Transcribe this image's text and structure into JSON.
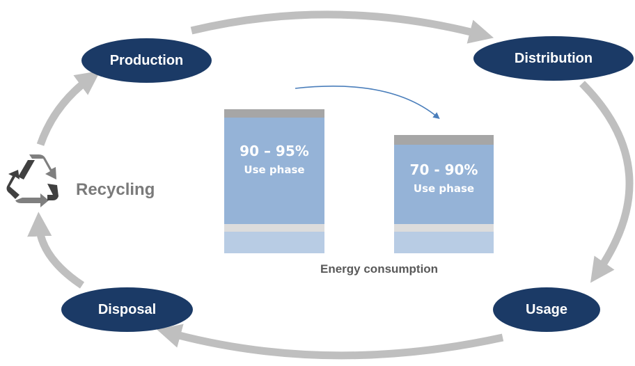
{
  "cycle": {
    "production": "Production",
    "distribution": "Distribution",
    "usage": "Usage",
    "disposal": "Disposal",
    "recycling": "Recycling"
  },
  "bars": [
    {
      "percent": "90 – 95%",
      "phase": "Use phase"
    },
    {
      "percent": "70 - 90%",
      "phase": "Use phase"
    }
  ],
  "energy_label": "Energy consumption",
  "colors": {
    "node": "#1b3a66",
    "arrow": "#bfbfbf",
    "bar_main": "#95b3d7",
    "bar_top": "#a6a6a6",
    "bar_bottom": "#b8cce4",
    "accent_arrow": "#4a7ebb"
  },
  "icons": {
    "recycling": "recycle-icon"
  }
}
